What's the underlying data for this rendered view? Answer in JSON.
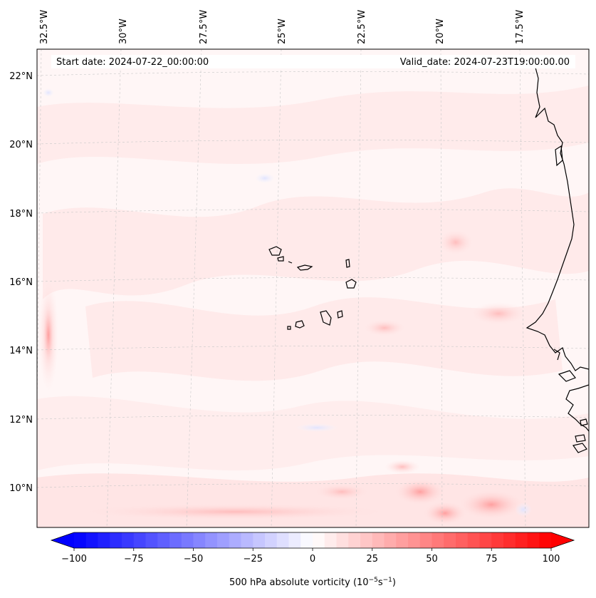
{
  "map": {
    "start_date_text": "Start date: 2024-07-22_00:00:00",
    "valid_date_text": "Valid_date: 2024-07-23T19:00:00.00",
    "longitude_labels": [
      "32.5°W",
      "30°W",
      "27.5°W",
      "25°W",
      "22.5°W",
      "20°W",
      "17.5°W"
    ],
    "latitude_labels": [
      "22°N",
      "20°N",
      "18°N",
      "16°N",
      "14°N",
      "12°N",
      "10°N"
    ],
    "field": "500 hPa absolute vorticity"
  },
  "colorbar": {
    "label_main": "500 hPa absolute vorticity (10",
    "label_exp1": "−5",
    "label_mid": "s",
    "label_exp2": "−1",
    "label_close": ")",
    "ticks": [
      "−100",
      "−75",
      "−50",
      "−25",
      "0",
      "25",
      "50",
      "75",
      "100"
    ],
    "min": -100,
    "max": 100,
    "negative_color": "#0000ff",
    "positive_color": "#ff0000"
  }
}
